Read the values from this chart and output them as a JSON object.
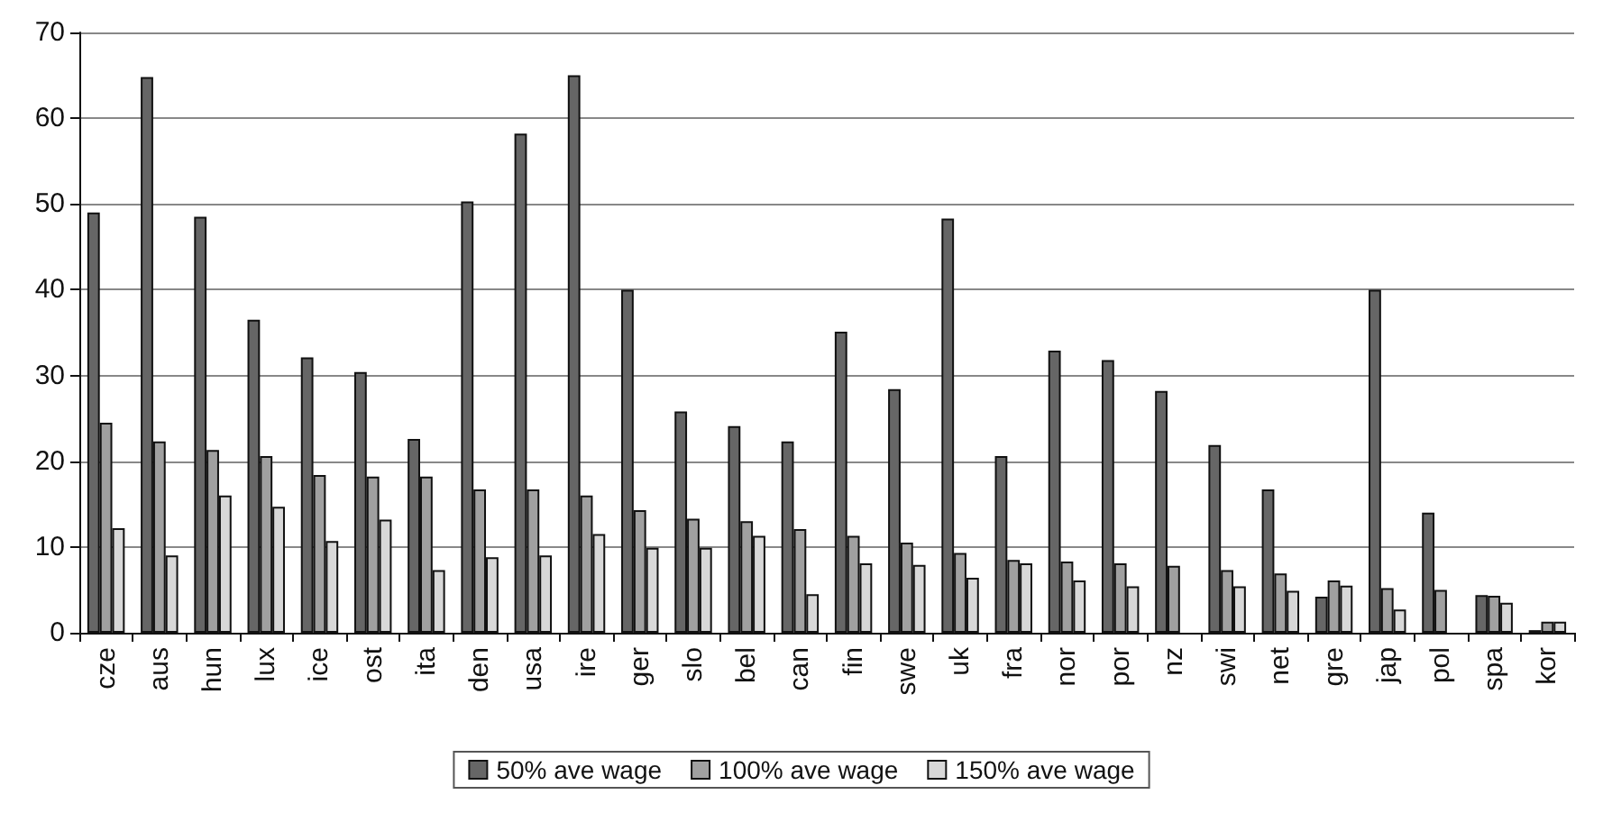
{
  "chart_data": {
    "type": "bar",
    "categories": [
      "cze",
      "aus",
      "hun",
      "lux",
      "ice",
      "ost",
      "ita",
      "den",
      "usa",
      "ire",
      "ger",
      "slo",
      "bel",
      "can",
      "fin",
      "swe",
      "uk",
      "fra",
      "nor",
      "por",
      "nz",
      "swi",
      "net",
      "gre",
      "jap",
      "pol",
      "spa",
      "kor"
    ],
    "series": [
      {
        "name": "50% ave wage",
        "color": "#666666",
        "values": [
          49,
          64.8,
          48.5,
          36.5,
          32.1,
          30.4,
          22.6,
          50.3,
          58.2,
          65,
          40,
          25.8,
          24.1,
          22.3,
          35.1,
          28.4,
          48.3,
          20.6,
          32.9,
          31.8,
          28.2,
          21.9,
          16.7,
          4.2,
          40,
          14,
          4.4,
          0.3
        ]
      },
      {
        "name": "100% ave wage",
        "color": "#a0a0a0",
        "values": [
          24.5,
          22.3,
          21.3,
          20.6,
          18.4,
          18.2,
          18.2,
          16.7,
          16.7,
          16,
          14.3,
          13.3,
          13,
          12.1,
          11.3,
          10.5,
          9.3,
          8.5,
          8.3,
          8.1,
          7.8,
          7.3,
          6.9,
          6.1,
          5.2,
          5,
          4.3,
          1.3
        ]
      },
      {
        "name": "150% ave wage",
        "color": "#d8d8d8",
        "values": [
          12.2,
          9,
          16,
          14.7,
          10.7,
          13.2,
          7.3,
          8.8,
          9,
          11.5,
          9.9,
          9.9,
          11.3,
          4.5,
          8.1,
          7.9,
          6.4,
          8.1,
          6.1,
          5.4,
          null,
          5.4,
          4.9,
          5.5,
          2.7,
          null,
          3.5,
          1.3
        ]
      }
    ],
    "ylim": [
      0,
      70
    ],
    "yticks": [
      0,
      10,
      20,
      30,
      40,
      50,
      60,
      70
    ],
    "grid": "y",
    "legend": "bottom"
  }
}
